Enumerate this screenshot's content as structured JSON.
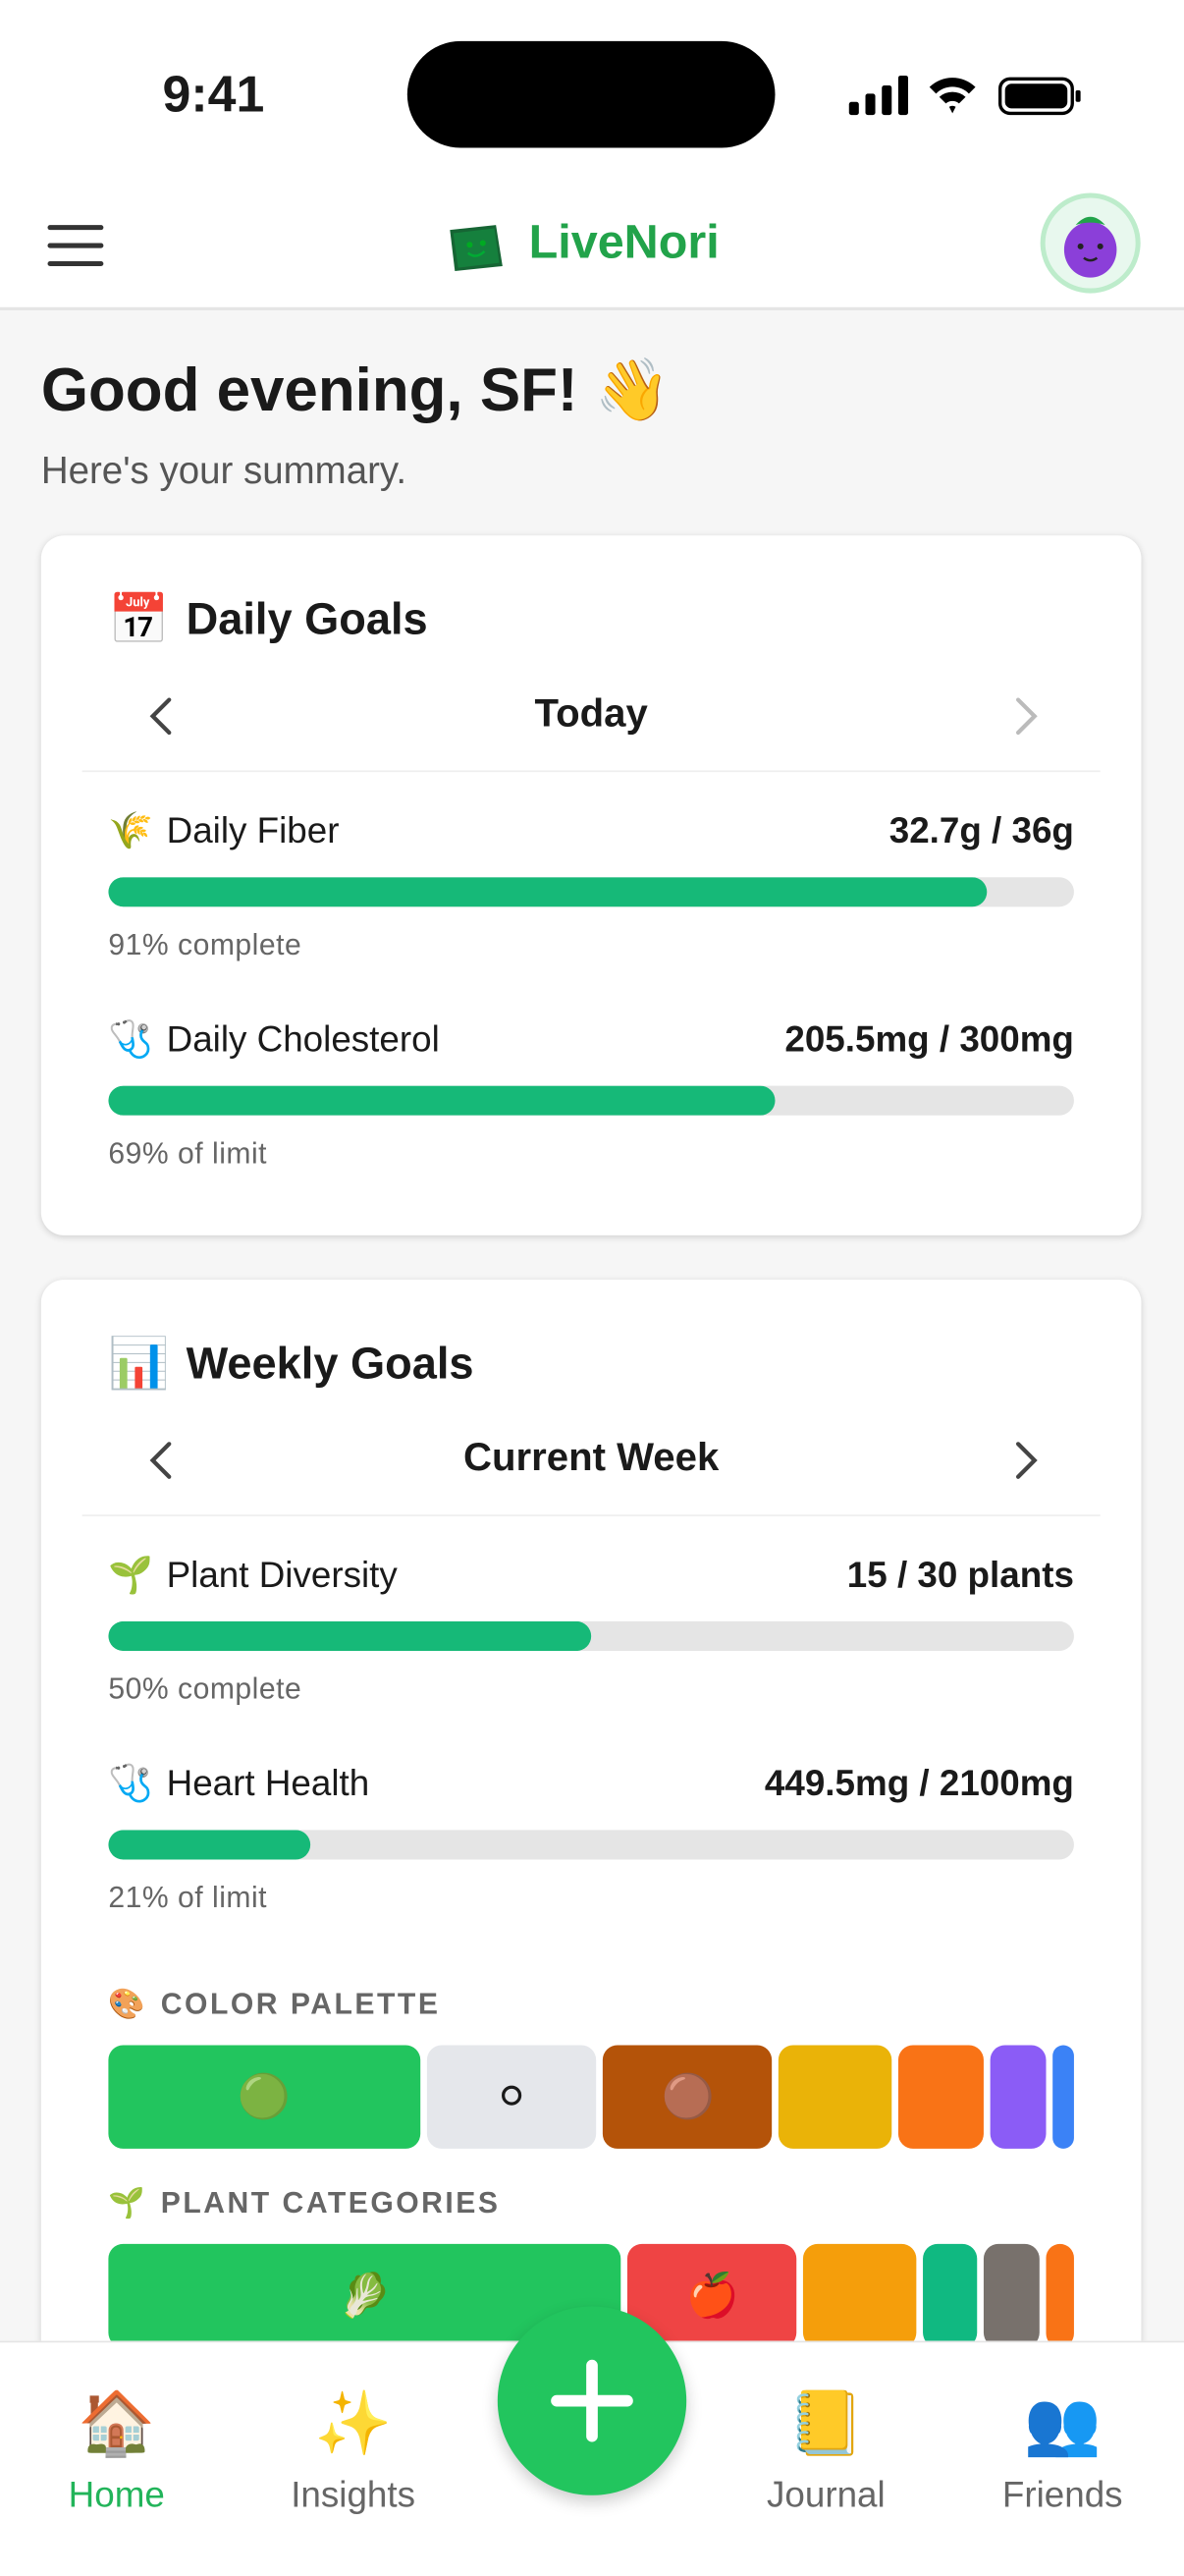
{
  "status_bar": {
    "time": "9:41"
  },
  "header": {
    "app_name": "LiveNori"
  },
  "greeting": {
    "title": "Good evening, SF! 👋",
    "subtitle": "Here's your summary."
  },
  "daily_goals": {
    "icon": "📅",
    "title": "Daily Goals",
    "period": "Today",
    "items": [
      {
        "icon": "🌾",
        "name": "Daily Fiber",
        "amount": "32.7g / 36g",
        "progress": 91,
        "progress_label": "91% complete"
      },
      {
        "icon": "🩺",
        "name": "Daily Cholesterol",
        "amount": "205.5mg / 300mg",
        "progress": 69,
        "progress_label": "69% of limit"
      }
    ]
  },
  "weekly_goals": {
    "icon": "📊",
    "title": "Weekly Goals",
    "period": "Current Week",
    "items": [
      {
        "icon": "🌱",
        "name": "Plant Diversity",
        "amount": "15 / 30 plants",
        "progress": 50,
        "progress_label": "50% complete"
      },
      {
        "icon": "🩺",
        "name": "Heart Health",
        "amount": "449.5mg / 2100mg",
        "progress": 21,
        "progress_label": "21% of limit"
      }
    ],
    "color_palette": {
      "icon": "🎨",
      "title": "COLOR PALETTE",
      "segments": [
        {
          "color": "#22c55e",
          "share": 190,
          "icon": "🟢"
        },
        {
          "color": "#e5e7eb",
          "share": 104,
          "icon": "⚪"
        },
        {
          "color": "#b45309",
          "share": 103,
          "icon": "🟤"
        },
        {
          "color": "#eab308",
          "share": 69
        },
        {
          "color": "#f97316",
          "share": 52
        },
        {
          "color": "#8b5cf6",
          "share": 34
        },
        {
          "color": "#3b82f6",
          "share": 13
        }
      ]
    },
    "plant_categories": {
      "icon": "🌱",
      "title": "PLANT CATEGORIES",
      "segments": [
        {
          "color": "#22c55e",
          "share": 313,
          "icon": "🥬"
        },
        {
          "color": "#ef4444",
          "share": 103,
          "icon": "🍎"
        },
        {
          "color": "#f59e0b",
          "share": 69
        },
        {
          "color": "#10b981",
          "share": 33
        },
        {
          "color": "#78716c",
          "share": 34
        },
        {
          "color": "#f97316",
          "share": 17
        }
      ]
    }
  },
  "nav": {
    "items": [
      {
        "icon": "🏠",
        "label": "Home",
        "active": true
      },
      {
        "icon": "✨",
        "label": "Insights",
        "active": false
      },
      {
        "icon": "📒",
        "label": "Journal",
        "active": false
      },
      {
        "icon": "👥",
        "label": "Friends",
        "active": false
      }
    ]
  }
}
